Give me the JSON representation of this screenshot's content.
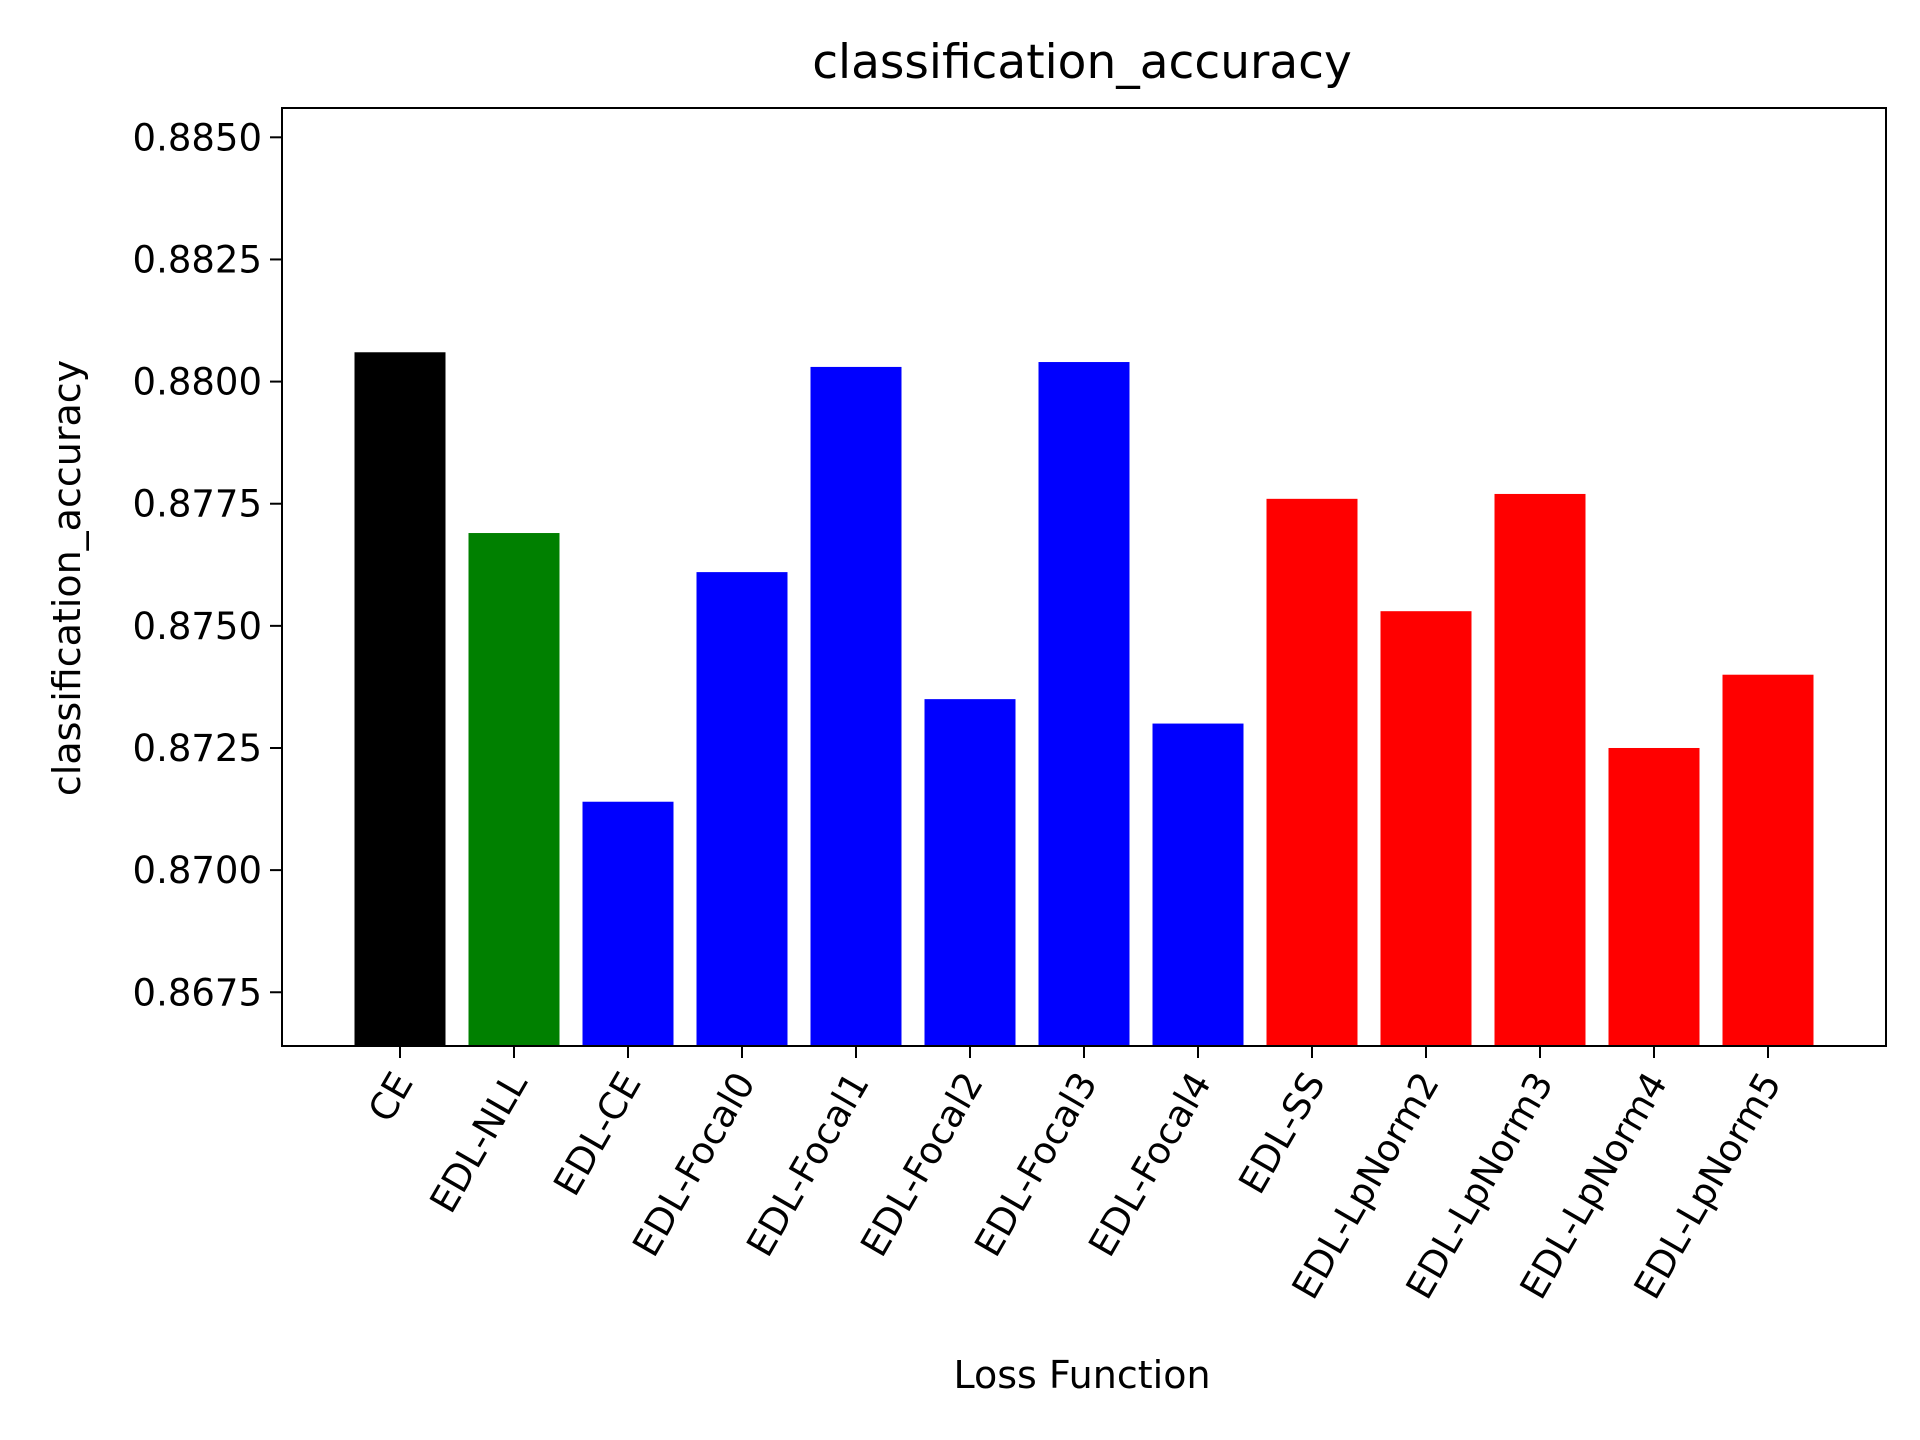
{
  "chart_data": {
    "type": "bar",
    "title": "classification_accuracy",
    "xlabel": "Loss Function",
    "ylabel": "classification_accuracy",
    "categories": [
      "CE",
      "EDL-NLL",
      "EDL-CE",
      "EDL-Focal0",
      "EDL-Focal1",
      "EDL-Focal2",
      "EDL-Focal3",
      "EDL-Focal4",
      "EDL-SS",
      "EDL-LpNorm2",
      "EDL-LpNorm3",
      "EDL-LpNorm4",
      "EDL-LpNorm5"
    ],
    "values": [
      0.8806,
      0.8769,
      0.8714,
      0.8761,
      0.8803,
      0.8735,
      0.8804,
      0.873,
      0.8776,
      0.8753,
      0.8777,
      0.8725,
      0.874
    ],
    "bar_colors": [
      "#000000",
      "#008000",
      "#0000ff",
      "#0000ff",
      "#0000ff",
      "#0000ff",
      "#0000ff",
      "#0000ff",
      "#ff0000",
      "#ff0000",
      "#ff0000",
      "#ff0000",
      "#ff0000"
    ],
    "ylim": [
      0.8664,
      0.8856
    ],
    "yticks": [
      "0.8675",
      "0.8700",
      "0.8725",
      "0.8750",
      "0.8775",
      "0.8800",
      "0.8825",
      "0.8850"
    ],
    "grid": false,
    "legend": "none"
  }
}
